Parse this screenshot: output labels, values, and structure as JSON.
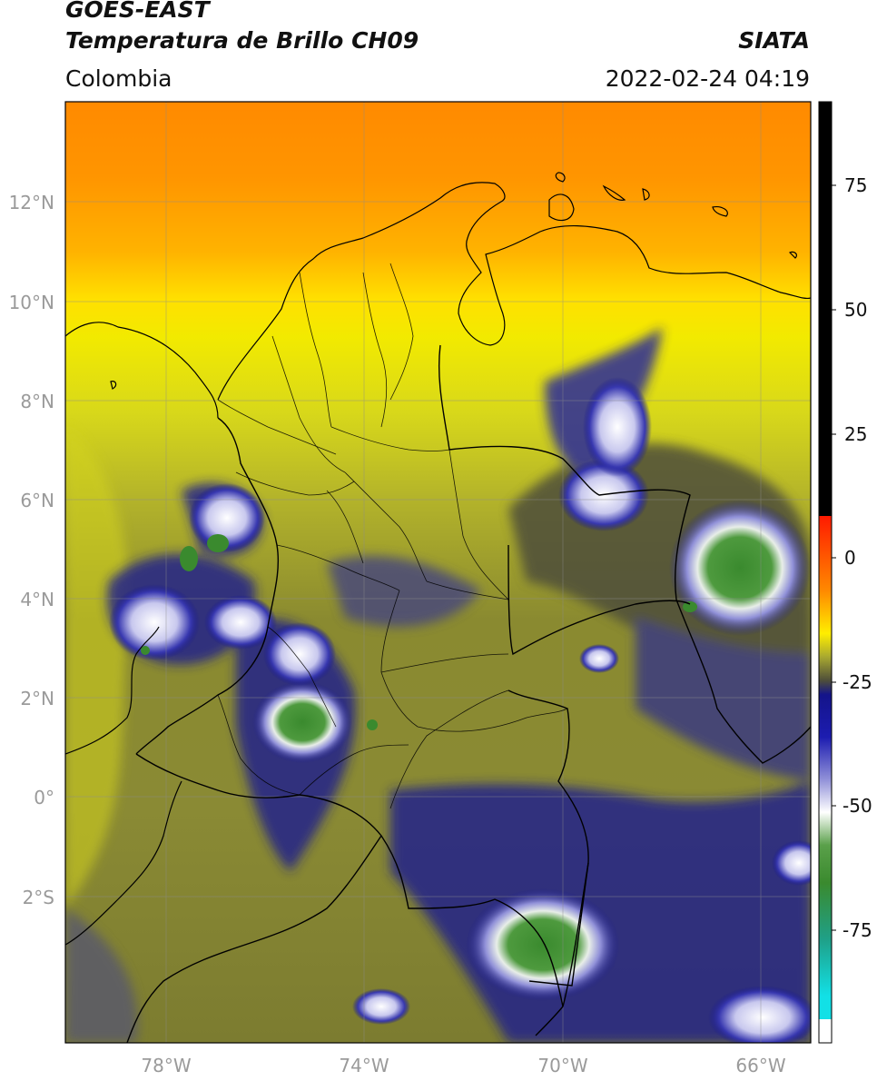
{
  "header": {
    "satellite": "GOES-EAST",
    "product": "Temperatura de Brillo CH09",
    "region": "Colombia",
    "source": "SIATA",
    "datetime": "2022-02-24 04:19"
  },
  "map": {
    "lat_labels": [
      "12°N",
      "10°N",
      "8°N",
      "6°N",
      "4°N",
      "2°N",
      "0°",
      "2°S"
    ],
    "lon_labels": [
      "78°W",
      "74°W",
      "70°W",
      "66°W"
    ]
  },
  "colorbar": {
    "tick_labels": [
      "75",
      "50",
      "25",
      "0",
      "-25",
      "-50",
      "-75"
    ],
    "colors": {
      "black": "#000000",
      "red": "#ff1a00",
      "orange": "#ff8a00",
      "yellow": "#ffee00",
      "olive": "#a8a830",
      "dark_olive": "#4e4e3a",
      "navy": "#14148a",
      "white": "#ffffff",
      "green": "#3a8a2e",
      "teal": "#1fa088",
      "cyan": "#12e0e6"
    }
  },
  "icons": [
    "coastline-outline",
    "country-border-outline",
    "department-border-outline"
  ]
}
